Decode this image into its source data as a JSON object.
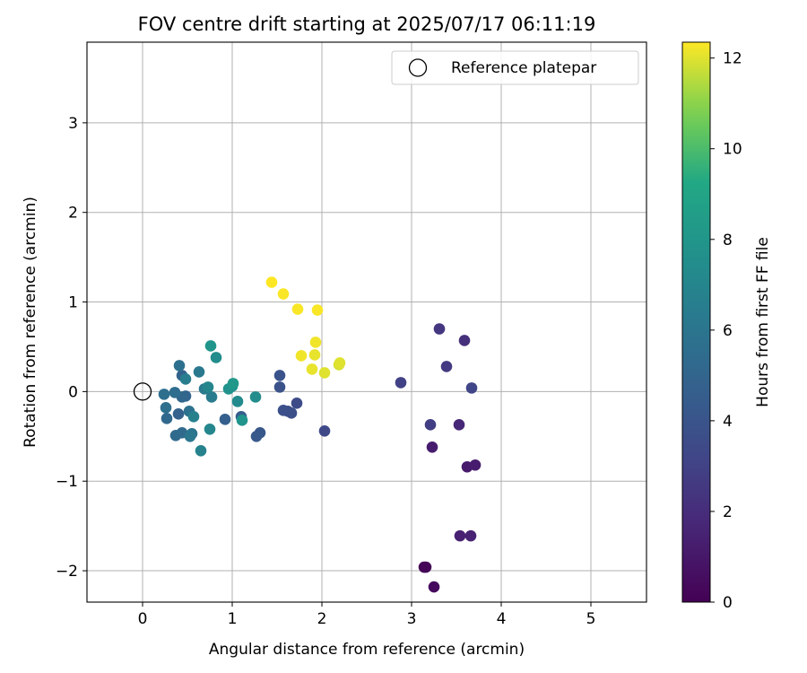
{
  "chart_data": {
    "type": "scatter",
    "title": "FOV centre drift starting at 2025/07/17 06:11:19",
    "xlabel": "Angular distance from reference (arcmin)",
    "ylabel": "Rotation from reference (arcmin)",
    "xlim": [
      -0.62,
      5.62
    ],
    "ylim": [
      -2.35,
      3.9
    ],
    "xticks": [
      0,
      1,
      2,
      3,
      4,
      5
    ],
    "yticks": [
      -2,
      -1,
      0,
      1,
      2,
      3
    ],
    "xtick_labels": [
      "0",
      "1",
      "2",
      "3",
      "4",
      "5"
    ],
    "ytick_labels": [
      "−2",
      "−1",
      "0",
      "1",
      "2",
      "3"
    ],
    "grid": true,
    "legend": {
      "placement": "top-right",
      "entries": [
        {
          "label": "Reference platepar",
          "marker": "open-circle"
        }
      ]
    },
    "reference_point": {
      "x": 0,
      "y": 0
    },
    "colorbar": {
      "label": "Hours from first FF file",
      "colormap": "viridis",
      "range": [
        0,
        12.35
      ],
      "ticks": [
        0,
        2,
        4,
        6,
        8,
        10,
        12
      ],
      "tick_labels": [
        "0",
        "2",
        "4",
        "6",
        "8",
        "10",
        "12"
      ]
    },
    "points": [
      {
        "x": 3.14,
        "y": -1.96,
        "h": 0.1
      },
      {
        "x": 3.16,
        "y": -1.96,
        "h": 0.2
      },
      {
        "x": 3.25,
        "y": -2.18,
        "h": 0.4
      },
      {
        "x": 3.62,
        "y": -0.84,
        "h": 1.1
      },
      {
        "x": 3.71,
        "y": -0.82,
        "h": 1.2
      },
      {
        "x": 3.23,
        "y": -0.62,
        "h": 1.2
      },
      {
        "x": 3.54,
        "y": -1.61,
        "h": 1.4
      },
      {
        "x": 3.66,
        "y": -1.61,
        "h": 1.5
      },
      {
        "x": 3.53,
        "y": -0.37,
        "h": 1.7
      },
      {
        "x": 3.59,
        "y": 0.57,
        "h": 2.1
      },
      {
        "x": 3.31,
        "y": 0.7,
        "h": 2.4
      },
      {
        "x": 3.39,
        "y": 0.28,
        "h": 2.6
      },
      {
        "x": 3.21,
        "y": -0.37,
        "h": 2.8
      },
      {
        "x": 2.88,
        "y": 0.1,
        "h": 3.0
      },
      {
        "x": 3.67,
        "y": 0.04,
        "h": 3.2
      },
      {
        "x": 2.03,
        "y": -0.44,
        "h": 3.4
      },
      {
        "x": 1.72,
        "y": -0.13,
        "h": 3.5
      },
      {
        "x": 1.62,
        "y": -0.22,
        "h": 3.6
      },
      {
        "x": 1.66,
        "y": -0.24,
        "h": 3.7
      },
      {
        "x": 1.57,
        "y": -0.21,
        "h": 3.8
      },
      {
        "x": 1.53,
        "y": 0.05,
        "h": 3.9
      },
      {
        "x": 1.53,
        "y": 0.18,
        "h": 4.0
      },
      {
        "x": 1.31,
        "y": -0.46,
        "h": 4.2
      },
      {
        "x": 1.27,
        "y": -0.5,
        "h": 4.3
      },
      {
        "x": 1.1,
        "y": -0.28,
        "h": 4.5
      },
      {
        "x": 0.92,
        "y": -0.31,
        "h": 4.7
      },
      {
        "x": 0.4,
        "y": -0.25,
        "h": 4.8
      },
      {
        "x": 0.44,
        "y": 0.18,
        "h": 4.9
      },
      {
        "x": 0.48,
        "y": -0.05,
        "h": 5.0
      },
      {
        "x": 0.44,
        "y": -0.06,
        "h": 5.1
      },
      {
        "x": 0.27,
        "y": -0.3,
        "h": 5.2
      },
      {
        "x": 0.37,
        "y": -0.49,
        "h": 5.3
      },
      {
        "x": 0.44,
        "y": -0.46,
        "h": 5.4
      },
      {
        "x": 0.36,
        "y": -0.01,
        "h": 5.5
      },
      {
        "x": 0.26,
        "y": -0.18,
        "h": 5.6
      },
      {
        "x": 0.24,
        "y": -0.03,
        "h": 5.6
      },
      {
        "x": 0.41,
        "y": 0.29,
        "h": 5.7
      },
      {
        "x": 0.52,
        "y": -0.22,
        "h": 5.8
      },
      {
        "x": 0.55,
        "y": -0.47,
        "h": 5.9
      },
      {
        "x": 0.53,
        "y": -0.5,
        "h": 6.1
      },
      {
        "x": 0.63,
        "y": 0.22,
        "h": 6.2
      },
      {
        "x": 0.69,
        "y": 0.03,
        "h": 6.3
      },
      {
        "x": 0.77,
        "y": -0.06,
        "h": 6.4
      },
      {
        "x": 0.48,
        "y": 0.14,
        "h": 6.5
      },
      {
        "x": 0.57,
        "y": -0.28,
        "h": 6.7
      },
      {
        "x": 0.65,
        "y": -0.66,
        "h": 6.8
      },
      {
        "x": 0.73,
        "y": 0.05,
        "h": 7.0
      },
      {
        "x": 0.75,
        "y": -0.42,
        "h": 7.1
      },
      {
        "x": 1.06,
        "y": -0.11,
        "h": 7.3
      },
      {
        "x": 0.82,
        "y": 0.38,
        "h": 7.4
      },
      {
        "x": 1.26,
        "y": -0.06,
        "h": 7.5
      },
      {
        "x": 1.0,
        "y": 0.06,
        "h": 7.7
      },
      {
        "x": 0.96,
        "y": 0.03,
        "h": 7.8
      },
      {
        "x": 1.11,
        "y": -0.32,
        "h": 7.9
      },
      {
        "x": 0.76,
        "y": 0.51,
        "h": 8.0
      },
      {
        "x": 1.01,
        "y": 0.09,
        "h": 8.2
      },
      {
        "x": 2.19,
        "y": 0.3,
        "h": 11.9
      },
      {
        "x": 2.2,
        "y": 0.32,
        "h": 12.0
      },
      {
        "x": 2.03,
        "y": 0.21,
        "h": 12.0
      },
      {
        "x": 1.89,
        "y": 0.25,
        "h": 12.1
      },
      {
        "x": 1.92,
        "y": 0.41,
        "h": 12.1
      },
      {
        "x": 1.93,
        "y": 0.55,
        "h": 12.2
      },
      {
        "x": 1.77,
        "y": 0.4,
        "h": 12.2
      },
      {
        "x": 1.73,
        "y": 0.92,
        "h": 12.3
      },
      {
        "x": 1.95,
        "y": 0.91,
        "h": 12.3
      },
      {
        "x": 1.57,
        "y": 1.09,
        "h": 12.3
      },
      {
        "x": 1.44,
        "y": 1.22,
        "h": 12.35
      }
    ]
  }
}
